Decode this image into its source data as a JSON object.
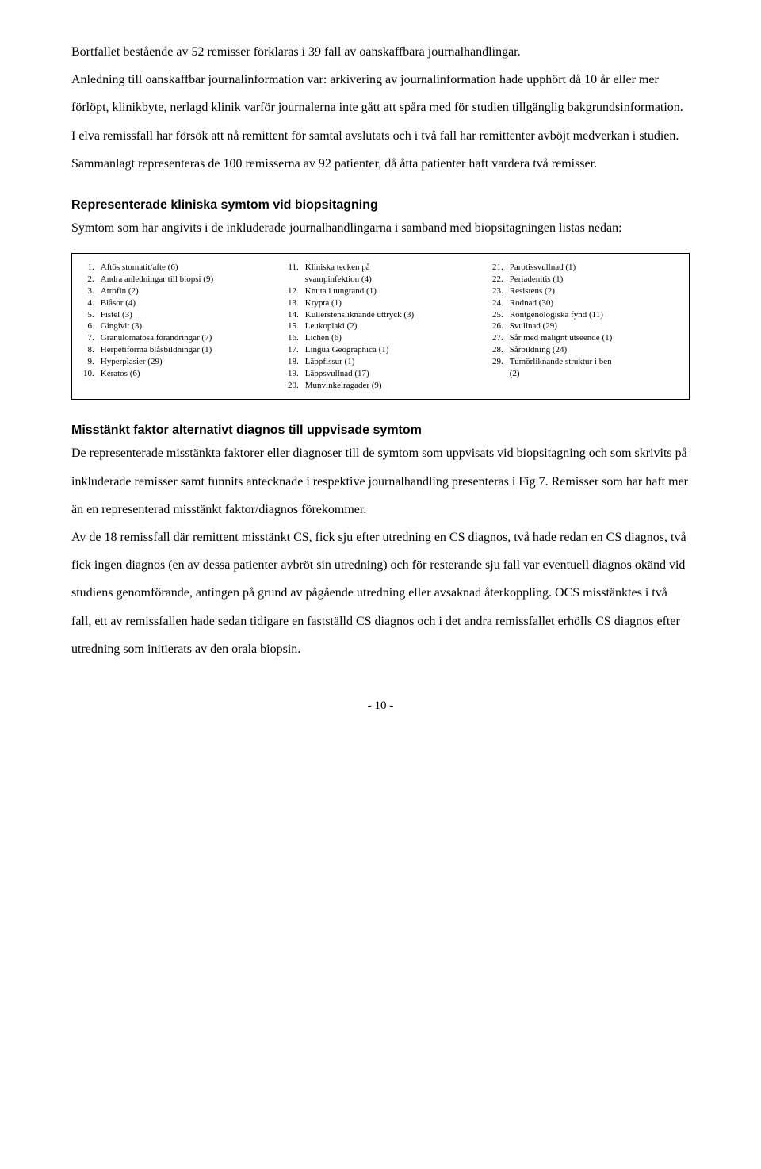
{
  "intro": {
    "p1": "Bortfallet bestående av 52 remisser förklaras i 39 fall av oanskaffbara journalhandlingar.",
    "p2": "Anledning till oanskaffbar journalinformation var: arkivering av journalinformation hade upphört då 10 år eller mer förlöpt, klinikbyte, nerlagd klinik varför journalerna inte gått att spåra med för studien tillgänglig bakgrundsinformation. I elva remissfall har försök att nå remittent för samtal avslutats och i två fall har remittenter avböjt medverkan i studien.",
    "p3": "Sammanlagt representeras de 100 remisserna av 92 patienter, då åtta patienter haft vardera två remisser."
  },
  "section1": {
    "heading": "Representerade kliniska symtom vid biopsitagning",
    "lead": "Symtom som har angivits i de inkluderade journalhandlingarna i samband med biopsitagningen listas nedan:"
  },
  "symptoms": {
    "col1": {
      "nums": "1.\n2.\n3.\n4.\n5.\n6.\n7.\n8.\n9.\n10.",
      "labels": "Aftös stomatit/afte (6)\nAndra anledningar till biopsi (9)\nAtrofin (2)\nBlåsor (4)\nFistel (3)\nGingivit (3)\nGranulomatösa förändringar (7)\nHerpetiforma blåsbildningar (1)\nHyperplasier (29)\nKeratos (6)"
    },
    "col2": {
      "nums": "11.\n\n12.\n13.\n14.\n15.\n16.\n17.\n18.\n19.\n20.",
      "labels": "Kliniska tecken på\nsvampinfektion (4)\nKnuta i tungrand (1)\nKrypta (1)\nKullerstensliknande uttryck (3)\nLeukoplaki (2)\nLichen (6)\nLingua Geographica (1)\nLäppfissur (1)\nLäppsvullnad (17)\nMunvinkelragader (9)"
    },
    "col3": {
      "nums": "21.\n22.\n23.\n24.\n25.\n26.\n27.\n28.\n29.\n",
      "labels": "Parotissvullnad (1)\nPeriadenitis (1)\nResistens (2)\nRodnad (30)\nRöntgenologiska fynd (11)\nSvullnad (29)\nSår med malignt utseende (1)\nSårbildning (24)\nTumörliknande struktur i ben\n(2)"
    }
  },
  "section2": {
    "heading": "Misstänkt faktor alternativt diagnos till uppvisade symtom",
    "p1": "De representerade misstänkta faktorer eller diagnoser till de symtom som uppvisats vid biopsitagning och som skrivits på inkluderade remisser samt funnits antecknade i respektive journalhandling presenteras i Fig 7. Remisser som har haft mer än en representerad misstänkt faktor/diagnos förekommer.",
    "p2": "Av de 18 remissfall där remittent misstänkt CS, fick sju efter utredning en CS diagnos, två hade redan en CS diagnos, två fick ingen diagnos (en av dessa patienter avbröt sin utredning) och för resterande sju fall var eventuell diagnos okänd vid studiens genomförande, antingen på grund av pågående utredning eller avsaknad återkoppling. OCS misstänktes i två fall, ett av remissfallen hade sedan tidigare en fastställd CS diagnos och i det andra remissfallet erhölls CS diagnos efter utredning som initierats av den orala biopsin."
  },
  "pageNumber": "- 10 -"
}
